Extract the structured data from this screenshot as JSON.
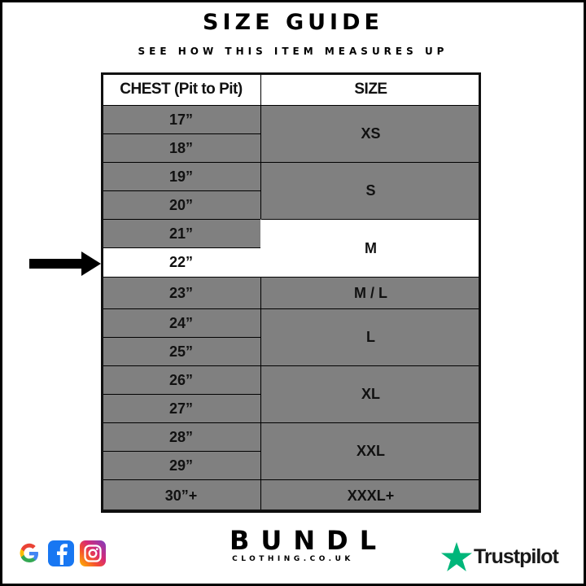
{
  "header": {
    "title": "SIZE GUIDE",
    "subtitle": "SEE HOW THIS ITEM MEASURES UP"
  },
  "table": {
    "columns": [
      "CHEST (Pit to Pit)",
      "SIZE"
    ],
    "chest": [
      "17”",
      "18”",
      "19”",
      "20”",
      "21”",
      "22”",
      "23”",
      "24”",
      "25”",
      "26”",
      "27”",
      "28”",
      "29”",
      "30”+"
    ],
    "highlighted_chest": "22”",
    "sizes": [
      {
        "label": "XS",
        "rows": 2
      },
      {
        "label": "S",
        "rows": 2
      },
      {
        "label": "M",
        "rows": 2,
        "highlighted": true
      },
      {
        "label": "M / L",
        "rows": 1
      },
      {
        "label": "L",
        "rows": 2
      },
      {
        "label": "XL",
        "rows": 2
      },
      {
        "label": "XXL",
        "rows": 2
      },
      {
        "label": "XXXL+",
        "rows": 1
      }
    ]
  },
  "colors": {
    "row_fill": "#808080",
    "highlight": "#ffffff",
    "border": "#111111",
    "trustpilot_green": "#00b67a"
  },
  "footer": {
    "social_icons": [
      "google-icon",
      "facebook-icon",
      "instagram-icon"
    ],
    "brand_name": "BUNDL",
    "brand_sub": "CLOTHING.CO.UK",
    "trustpilot": "Trustpilot"
  }
}
